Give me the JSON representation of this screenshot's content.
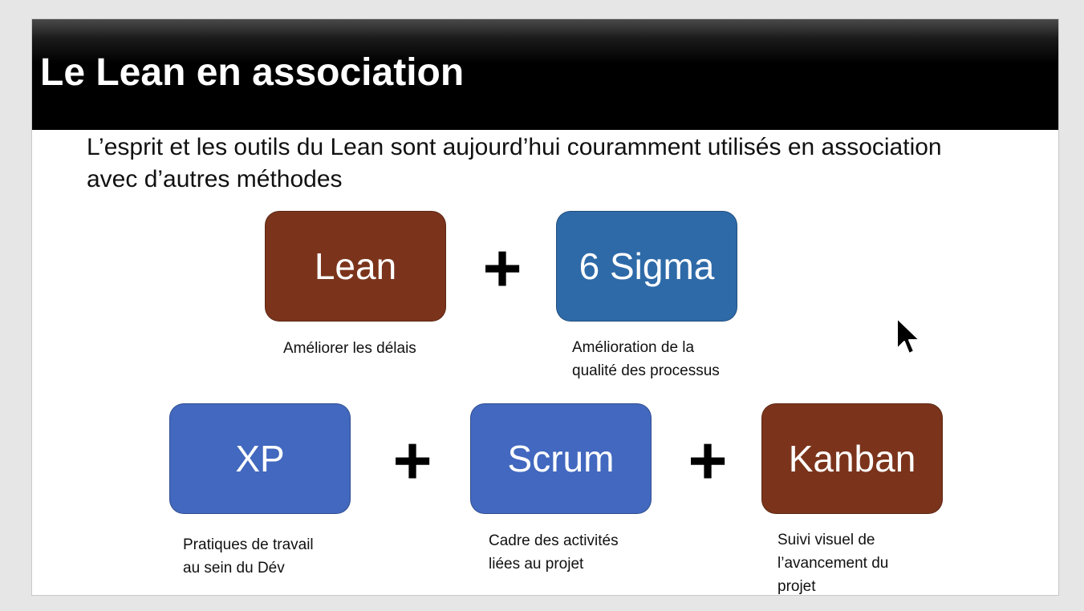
{
  "slide": {
    "title": "Le Lean en association",
    "subtitle": "L’esprit et les outils du Lean sont aujourd’hui couramment utilisés en association avec d’autres méthodes",
    "plus_sign": "+"
  },
  "colors": {
    "brown": "#7b341b",
    "dark_blue": "#2e6aa8",
    "blue": "#4268bf",
    "title_bg": "#000000",
    "title_text": "#ffffff"
  },
  "methods": {
    "lean": {
      "label": "Lean",
      "caption_lines": [
        "Améliorer les délais"
      ]
    },
    "six_sigma": {
      "label": "6 Sigma",
      "caption_lines": [
        "Amélioration de la",
        "qualité des processus"
      ]
    },
    "xp": {
      "label": "XP",
      "caption_lines": [
        "Pratiques de travail",
        "au sein du Dév"
      ]
    },
    "scrum": {
      "label": "Scrum",
      "caption_lines": [
        "Cadre des activités",
        "liées au projet"
      ]
    },
    "kanban": {
      "label": "Kanban",
      "caption_lines": [
        "Suivi visuel de",
        "l’avancement du",
        "projet"
      ]
    }
  },
  "cursor_icon": "arrow-cursor-icon"
}
